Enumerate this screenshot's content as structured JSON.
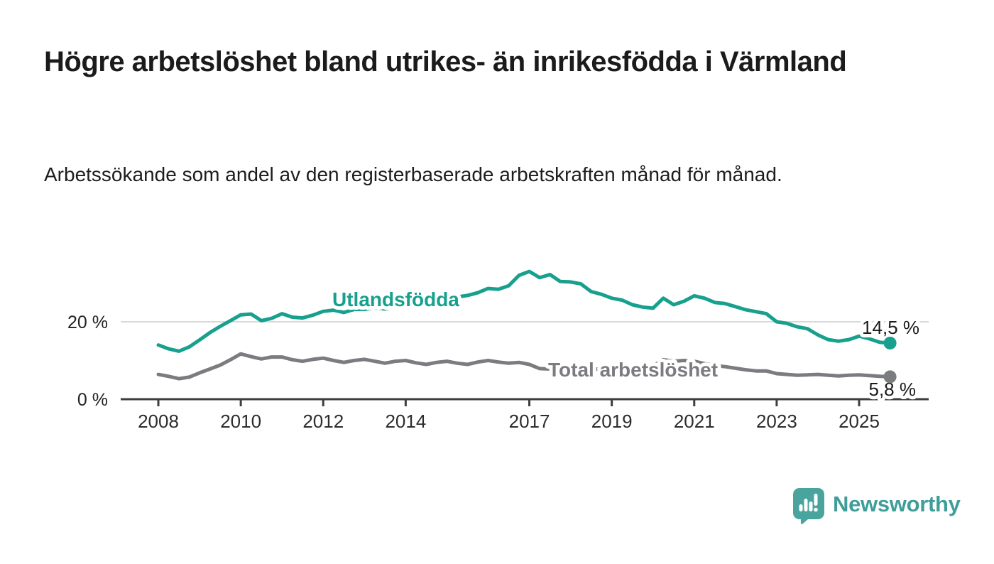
{
  "header": {
    "title": "Högre arbetslöshet bland utrikes- än inrikesfödda i Värmland",
    "subtitle": "Arbetssökande som andel av den registerbaserade arbetskraften månad för månad."
  },
  "chart_data": {
    "type": "line",
    "title": "Högre arbetslöshet bland utrikes- än inrikesfödda i Värmland",
    "xlabel": "",
    "ylabel": "",
    "unit": "%",
    "grid": "single horizontal gridline at 20 %",
    "legend_position": "labels drawn on lines",
    "x_axis": {
      "start_year": 2008.0,
      "step_years": 0.25,
      "end_year": 2025.75,
      "ticks": [
        {
          "year": 2008,
          "label": "2008"
        },
        {
          "year": 2010,
          "label": "2010"
        },
        {
          "year": 2012,
          "label": "2012"
        },
        {
          "year": 2014,
          "label": "2014"
        },
        {
          "year": 2017,
          "label": "2017"
        },
        {
          "year": 2019,
          "label": "2019"
        },
        {
          "year": 2021,
          "label": "2021"
        },
        {
          "year": 2023,
          "label": "2023"
        },
        {
          "year": 2025,
          "label": "2025"
        }
      ]
    },
    "y_axis": {
      "range": [
        0,
        36
      ],
      "ticks": [
        {
          "value": 0,
          "label": "0 %"
        },
        {
          "value": 20,
          "label": "20 %"
        }
      ]
    },
    "series": [
      {
        "name": "Utlandsfödda",
        "color": "#17a08d",
        "end_label": "14,5 %",
        "end_value": 14.5,
        "values": [
          14.0,
          13.0,
          12.4,
          13.5,
          15.3,
          17.2,
          18.8,
          20.3,
          21.8,
          22.0,
          20.3,
          20.9,
          22.1,
          21.2,
          21.0,
          21.7,
          22.7,
          23.0,
          22.4,
          23.2,
          23.2,
          23.7,
          23.3,
          24.1,
          24.5,
          24.9,
          24.7,
          25.5,
          25.9,
          26.4,
          26.8,
          27.5,
          28.6,
          28.4,
          29.3,
          32.0,
          33.0,
          31.4,
          32.2,
          30.4,
          30.3,
          29.8,
          27.8,
          27.1,
          26.1,
          25.6,
          24.4,
          23.8,
          23.5,
          26.1,
          24.4,
          25.3,
          26.7,
          26.1,
          25.0,
          24.7,
          23.9,
          23.1,
          22.6,
          22.1,
          20.0,
          19.6,
          18.7,
          18.2,
          16.6,
          15.4,
          15.0,
          15.4,
          16.3,
          15.6,
          14.7,
          14.5
        ]
      },
      {
        "name": "Total arbetslöshet",
        "color": "#7b7c80",
        "end_label": "5,8 %",
        "end_value": 5.8,
        "values": [
          6.4,
          5.9,
          5.3,
          5.7,
          6.8,
          7.8,
          8.8,
          10.2,
          11.7,
          11.0,
          10.4,
          10.9,
          10.9,
          10.2,
          9.8,
          10.3,
          10.6,
          10.0,
          9.5,
          10.0,
          10.3,
          9.8,
          9.3,
          9.8,
          10.0,
          9.4,
          9.0,
          9.5,
          9.8,
          9.3,
          9.0,
          9.6,
          10.0,
          9.6,
          9.3,
          9.5,
          9.0,
          7.9,
          7.8,
          8.3,
          8.4,
          8.0,
          7.6,
          7.9,
          8.0,
          7.7,
          7.4,
          7.8,
          8.6,
          10.2,
          9.8,
          10.0,
          9.8,
          9.2,
          8.7,
          8.4,
          8.0,
          7.6,
          7.3,
          7.3,
          6.6,
          6.4,
          6.2,
          6.3,
          6.4,
          6.2,
          6.0,
          6.2,
          6.3,
          6.1,
          5.9,
          5.8
        ]
      }
    ]
  },
  "footer": {
    "brand": "Newsworthy",
    "brand_color": "#3f9e99",
    "logo_icon": "speech-bubble-bar-chart-icon"
  }
}
